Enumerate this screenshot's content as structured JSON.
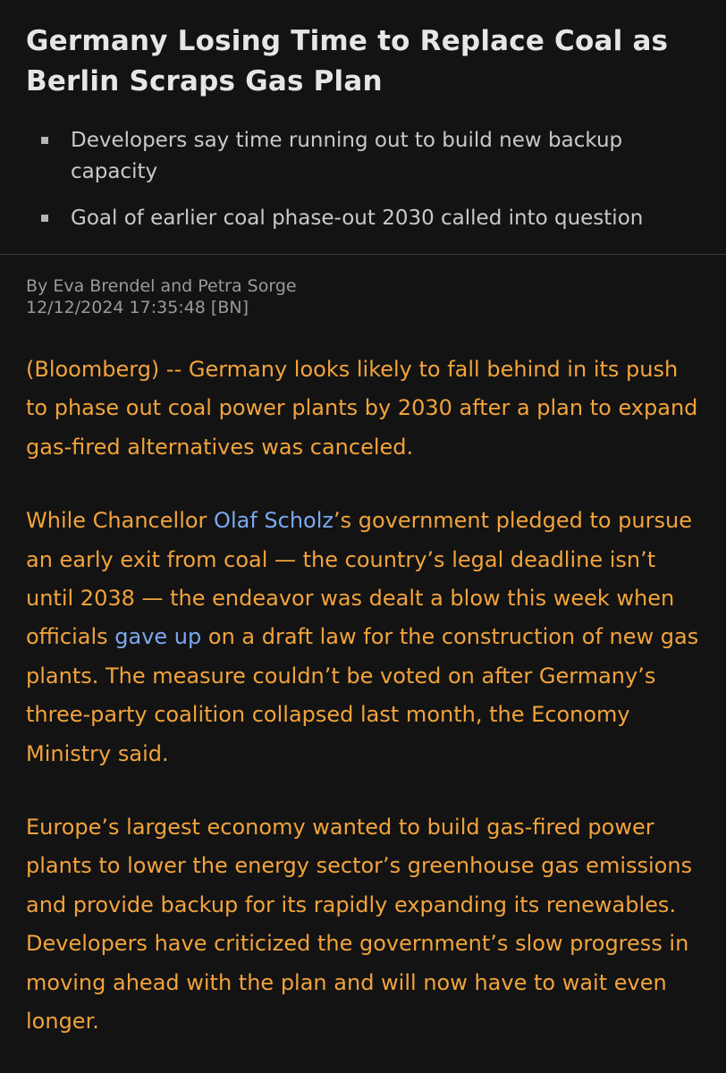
{
  "article": {
    "headline": "Germany Losing Time to Replace Coal as Berlin Scraps Gas Plan",
    "bullets": [
      "Developers say time running out to build new backup capacity",
      "Goal of earlier coal phase-out 2030 called into question"
    ],
    "byline": "By Eva Brendel and Petra Sorge",
    "timestamp": "12/12/2024 17:35:48 [BN]",
    "paragraphs": {
      "p1": "(Bloomberg) -- Germany looks likely to fall behind in its push to phase out coal power plants by 2030 after a plan to expand gas-fired alternatives was canceled.",
      "p2_part1": "While Chancellor ",
      "p2_link1": "Olaf Scholz",
      "p2_part2": "’s government pledged to pursue an early exit from coal — the country’s legal deadline isn’t until 2038 — the endeavor was dealt a blow this week when officials ",
      "p2_link2": "gave up",
      "p2_part3": " on a draft law for the construction of new gas plants. The measure couldn’t be voted on after Germany’s three-party coalition collapsed last month, the Economy Ministry said.",
      "p3": "Europe’s largest economy wanted to build gas-fired power plants to lower the energy sector’s greenhouse gas emissions and provide backup for its rapidly expanding its renewables. Developers have criticized the government’s slow progress in moving ahead with the plan and will now have to wait even longer."
    }
  },
  "colors": {
    "background": "#131313",
    "headline": "#e6e6e6",
    "bullet_text": "#c9c9c9",
    "meta": "#9a9a9a",
    "body_text": "#f2a33c",
    "link": "#7aa9f0"
  }
}
